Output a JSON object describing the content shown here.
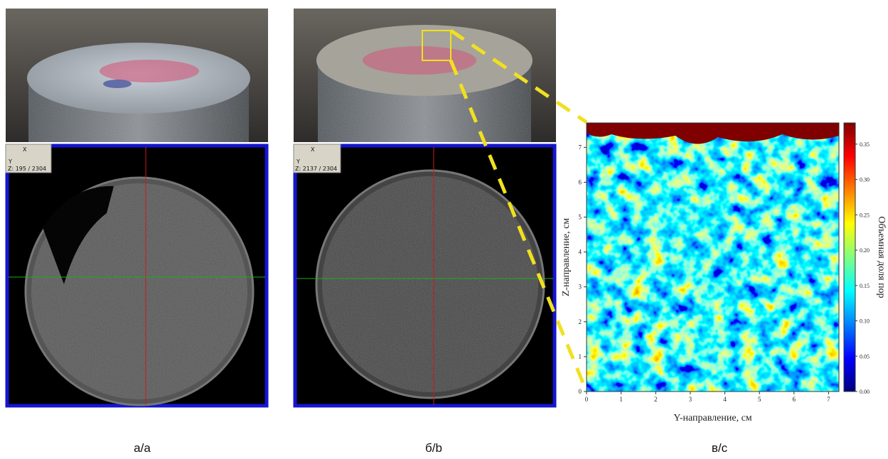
{
  "panels": [
    {
      "label": "а/а",
      "ct_overlay": {
        "axis_x": "X",
        "axis_y": "Y",
        "slice": "Z: 195 / 2304"
      }
    },
    {
      "label": "б/b",
      "ct_overlay": {
        "axis_x": "X",
        "axis_y": "Y",
        "slice": "Z: 2137 / 2304"
      }
    }
  ],
  "chart_data": {
    "type": "heatmap",
    "label": "в/с",
    "x_label": "Y-направление, см",
    "y_label": "Z-направление, см",
    "colorbar_label": "Объемная доля пор",
    "xlim": [
      0,
      7.3
    ],
    "ylim": [
      0,
      7.7
    ],
    "xticks": [
      0,
      1,
      2,
      3,
      4,
      5,
      6,
      7
    ],
    "yticks": [
      0,
      1,
      2,
      3,
      4,
      5,
      6,
      7
    ],
    "clim": [
      0,
      0.38
    ],
    "colormap": "jet",
    "cticks": [
      {
        "value": 0,
        "label": "0.00"
      },
      0.05,
      {
        "value": 0.1,
        "label": "0.10"
      },
      0.15,
      {
        "value": 0.2,
        "label": "0.20"
      },
      0.25,
      {
        "value": 0.3,
        "label": "0.30"
      },
      0.35
    ]
  }
}
